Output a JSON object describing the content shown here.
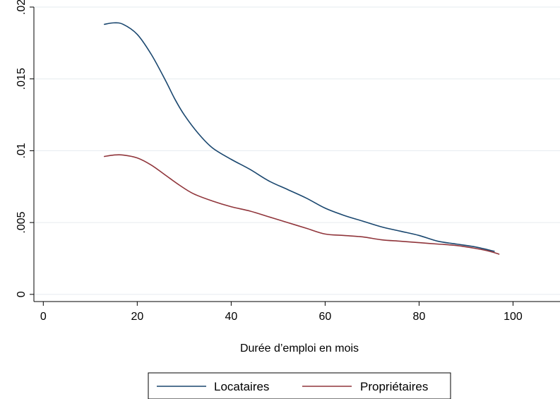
{
  "chart_data": {
    "type": "line",
    "title": "",
    "xlabel": "Durée d’emploi en mois",
    "ylabel": "",
    "xlim": [
      -2,
      110
    ],
    "ylim": [
      -0.0005,
      0.02
    ],
    "x_ticks": [
      0,
      20,
      40,
      60,
      80,
      100
    ],
    "x_tick_labels": [
      "0",
      "20",
      "40",
      "60",
      "80",
      "100"
    ],
    "y_ticks": [
      0,
      0.005,
      0.01,
      0.015,
      0.02
    ],
    "y_tick_labels": [
      "0",
      ".005",
      ".01",
      ".015",
      ".02"
    ],
    "grid": "horizontal",
    "legend_position": "bottom",
    "series": [
      {
        "name": "Locataires",
        "color": "#1a476f",
        "points": [
          [
            13,
            0.0188
          ],
          [
            15,
            0.0189
          ],
          [
            17,
            0.0188
          ],
          [
            20,
            0.0181
          ],
          [
            23,
            0.0167
          ],
          [
            26,
            0.0149
          ],
          [
            28,
            0.0136
          ],
          [
            30,
            0.0125
          ],
          [
            33,
            0.0112
          ],
          [
            36,
            0.0102
          ],
          [
            40,
            0.0094
          ],
          [
            44,
            0.0087
          ],
          [
            48,
            0.0079
          ],
          [
            52,
            0.0073
          ],
          [
            56,
            0.0067
          ],
          [
            60,
            0.006
          ],
          [
            64,
            0.0055
          ],
          [
            68,
            0.0051
          ],
          [
            72,
            0.0047
          ],
          [
            76,
            0.0044
          ],
          [
            80,
            0.0041
          ],
          [
            84,
            0.0037
          ],
          [
            88,
            0.0035
          ],
          [
            92,
            0.0033
          ],
          [
            96,
            0.003
          ]
        ]
      },
      {
        "name": "Propriétaires",
        "color": "#90353b",
        "points": [
          [
            13,
            0.0096
          ],
          [
            15,
            0.0097
          ],
          [
            17,
            0.0097
          ],
          [
            20,
            0.0095
          ],
          [
            23,
            0.009
          ],
          [
            26,
            0.0083
          ],
          [
            29,
            0.0076
          ],
          [
            32,
            0.007
          ],
          [
            36,
            0.0065
          ],
          [
            40,
            0.0061
          ],
          [
            44,
            0.0058
          ],
          [
            48,
            0.0054
          ],
          [
            52,
            0.005
          ],
          [
            56,
            0.0046
          ],
          [
            60,
            0.0042
          ],
          [
            64,
            0.0041
          ],
          [
            68,
            0.004
          ],
          [
            72,
            0.0038
          ],
          [
            76,
            0.0037
          ],
          [
            80,
            0.0036
          ],
          [
            84,
            0.0035
          ],
          [
            88,
            0.0034
          ],
          [
            92,
            0.0032
          ],
          [
            95,
            0.003
          ],
          [
            97,
            0.0028
          ]
        ]
      }
    ]
  }
}
